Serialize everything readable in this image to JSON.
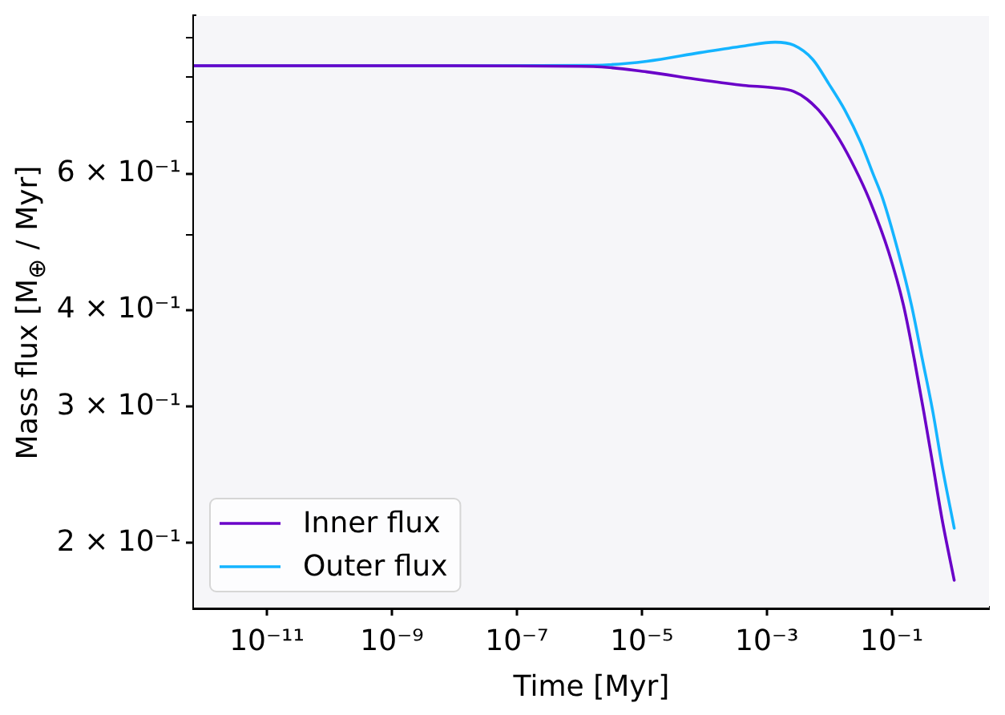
{
  "chart_data": {
    "type": "line",
    "xlabel": "Time [Myr]",
    "ylabel": "Mass flux [M$_{⊕}$ / Myr]",
    "log": "xy",
    "xlim": [
      6.8e-13,
      3.6
    ],
    "ylim": [
      0.165,
      0.96
    ],
    "xticks": [
      {
        "value": 1e-11,
        "label": "10⁻¹¹"
      },
      {
        "value": 1e-09,
        "label": "10⁻⁹"
      },
      {
        "value": 1e-07,
        "label": "10⁻⁷"
      },
      {
        "value": 1e-05,
        "label": "10⁻⁵"
      },
      {
        "value": 0.001,
        "label": "10⁻³"
      },
      {
        "value": 0.1,
        "label": "10⁻¹"
      }
    ],
    "yticks": [
      {
        "value": 0.2,
        "label": "2 × 10⁻¹"
      },
      {
        "value": 0.3,
        "label": "3 × 10⁻¹"
      },
      {
        "value": 0.4,
        "label": "4 × 10⁻¹"
      },
      {
        "value": 0.5,
        "label": null
      },
      {
        "value": 0.6,
        "label": "6 × 10⁻¹"
      },
      {
        "value": 0.7,
        "label": null
      },
      {
        "value": 0.8,
        "label": null
      },
      {
        "value": 0.9,
        "label": null
      }
    ],
    "legend": "bottom left",
    "series": [
      {
        "name": "Inner flux",
        "color": "#6a00c8",
        "x": [
          6.8e-13,
          1e-08,
          1.67e-06,
          1.2e-05,
          8.6e-05,
          0.00042,
          0.00136,
          0.00271,
          0.00443,
          0.008,
          0.0145,
          0.0261,
          0.043,
          0.089,
          0.154,
          0.229,
          0.327,
          0.457,
          0.637,
          1.0
        ],
        "values": [
          0.828,
          0.828,
          0.826,
          0.813,
          0.794,
          0.781,
          0.775,
          0.767,
          0.749,
          0.714,
          0.665,
          0.609,
          0.558,
          0.476,
          0.406,
          0.346,
          0.295,
          0.252,
          0.215,
          0.179
        ]
      },
      {
        "name": "Outer flux",
        "color": "#14b4ff",
        "x": [
          6.8e-13,
          1e-08,
          1.67e-06,
          1.2e-05,
          8.6e-05,
          0.00042,
          0.00136,
          0.00271,
          0.00542,
          0.0098,
          0.0177,
          0.0319,
          0.0507,
          0.0715,
          0.1268,
          0.207,
          0.308,
          0.457,
          0.637,
          1.0
        ],
        "values": [
          0.828,
          0.828,
          0.829,
          0.839,
          0.861,
          0.878,
          0.888,
          0.88,
          0.844,
          0.785,
          0.726,
          0.659,
          0.599,
          0.558,
          0.476,
          0.406,
          0.346,
          0.295,
          0.252,
          0.209
        ]
      }
    ]
  }
}
